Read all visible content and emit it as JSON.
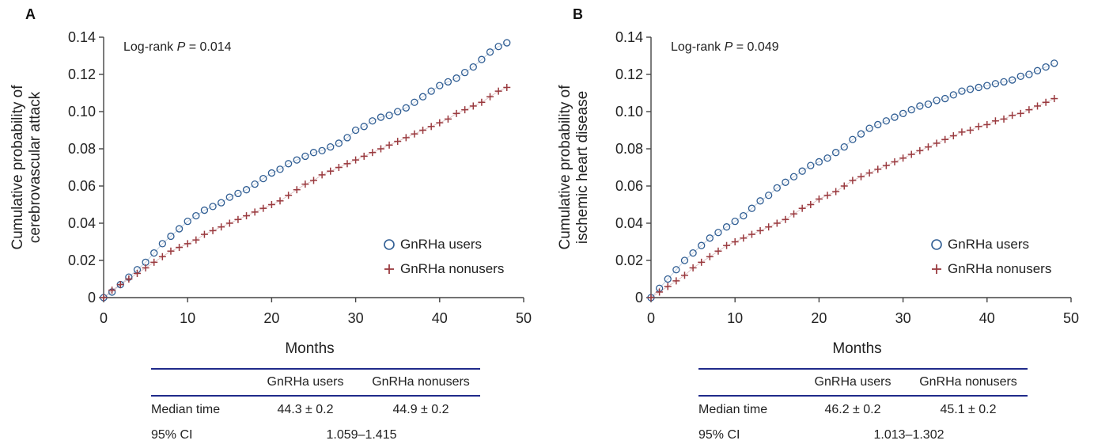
{
  "panels": [
    {
      "panel_label": "A",
      "annotation": {
        "prefix": "Log-rank ",
        "p": "P",
        "suffix": " = 0.014"
      },
      "table": {
        "col1": "GnRHa users",
        "col2": "GnRHa nonusers",
        "rows": [
          {
            "label": "Median time",
            "v1": "44.3 ± 0.2",
            "v2": "44.9 ± 0.2"
          },
          {
            "label": "95% CI",
            "span": "1.059–1.415"
          }
        ]
      }
    },
    {
      "panel_label": "B",
      "annotation": {
        "prefix": "Log-rank ",
        "p": "P",
        "suffix": " = 0.049"
      },
      "table": {
        "col1": "GnRHa users",
        "col2": "GnRHa nonusers",
        "rows": [
          {
            "label": "Median time",
            "v1": "46.2 ± 0.2",
            "v2": "45.1 ± 0.2"
          },
          {
            "label": "95% CI",
            "span": "1.013–1.302"
          }
        ]
      }
    }
  ],
  "chart_data": [
    {
      "type": "line",
      "xlabel": "Months",
      "ylabel": [
        "Cumulative probability of",
        "cerebrovascular attack"
      ],
      "xlim": [
        0,
        50
      ],
      "ylim": [
        0,
        0.14
      ],
      "xticks": [
        "0",
        "10",
        "20",
        "30",
        "40",
        "50"
      ],
      "yticks": [
        "0",
        "0.02",
        "0.04",
        "0.06",
        "0.08",
        "0.10",
        "0.12",
        "0.14"
      ],
      "legend": "bottom-right",
      "series": [
        {
          "name": "GnRHa users",
          "marker": "circle",
          "color": "#2f5d93",
          "x": [
            0,
            1,
            2,
            3,
            4,
            5,
            6,
            7,
            8,
            9,
            10,
            11,
            12,
            13,
            14,
            15,
            16,
            17,
            18,
            19,
            20,
            21,
            22,
            23,
            24,
            25,
            26,
            27,
            28,
            29,
            30,
            31,
            32,
            33,
            34,
            35,
            36,
            37,
            38,
            39,
            40,
            41,
            42,
            43,
            44,
            45,
            46,
            47,
            48
          ],
          "y": [
            0,
            0.003,
            0.007,
            0.011,
            0.015,
            0.019,
            0.024,
            0.029,
            0.033,
            0.037,
            0.041,
            0.044,
            0.047,
            0.049,
            0.051,
            0.054,
            0.056,
            0.058,
            0.061,
            0.064,
            0.067,
            0.069,
            0.072,
            0.074,
            0.076,
            0.078,
            0.079,
            0.081,
            0.083,
            0.086,
            0.09,
            0.092,
            0.095,
            0.097,
            0.098,
            0.1,
            0.102,
            0.105,
            0.108,
            0.111,
            0.114,
            0.116,
            0.118,
            0.121,
            0.124,
            0.128,
            0.132,
            0.135,
            0.137
          ]
        },
        {
          "name": "GnRHa nonusers",
          "marker": "plus",
          "color": "#9a3a3f",
          "x": [
            0,
            1,
            2,
            3,
            4,
            5,
            6,
            7,
            8,
            9,
            10,
            11,
            12,
            13,
            14,
            15,
            16,
            17,
            18,
            19,
            20,
            21,
            22,
            23,
            24,
            25,
            26,
            27,
            28,
            29,
            30,
            31,
            32,
            33,
            34,
            35,
            36,
            37,
            38,
            39,
            40,
            41,
            42,
            43,
            44,
            45,
            46,
            47,
            48
          ],
          "y": [
            0,
            0.004,
            0.007,
            0.01,
            0.013,
            0.016,
            0.019,
            0.022,
            0.025,
            0.027,
            0.029,
            0.031,
            0.034,
            0.036,
            0.038,
            0.04,
            0.042,
            0.044,
            0.046,
            0.048,
            0.05,
            0.052,
            0.055,
            0.058,
            0.061,
            0.063,
            0.066,
            0.068,
            0.07,
            0.072,
            0.074,
            0.076,
            0.078,
            0.08,
            0.082,
            0.084,
            0.086,
            0.088,
            0.09,
            0.092,
            0.094,
            0.096,
            0.099,
            0.101,
            0.103,
            0.105,
            0.108,
            0.111,
            0.113
          ]
        }
      ]
    },
    {
      "type": "line",
      "xlabel": "Months",
      "ylabel": [
        "Cumulative probability of",
        "ischemic heart disease"
      ],
      "xlim": [
        0,
        50
      ],
      "ylim": [
        0,
        0.14
      ],
      "xticks": [
        "0",
        "10",
        "20",
        "30",
        "40",
        "50"
      ],
      "yticks": [
        "0",
        "0.02",
        "0.04",
        "0.06",
        "0.08",
        "0.10",
        "0.12",
        "0.14"
      ],
      "legend": "bottom-right",
      "series": [
        {
          "name": "GnRHa users",
          "marker": "circle",
          "color": "#2f5d93",
          "x": [
            0,
            1,
            2,
            3,
            4,
            5,
            6,
            7,
            8,
            9,
            10,
            11,
            12,
            13,
            14,
            15,
            16,
            17,
            18,
            19,
            20,
            21,
            22,
            23,
            24,
            25,
            26,
            27,
            28,
            29,
            30,
            31,
            32,
            33,
            34,
            35,
            36,
            37,
            38,
            39,
            40,
            41,
            42,
            43,
            44,
            45,
            46,
            47,
            48
          ],
          "y": [
            0,
            0.005,
            0.01,
            0.015,
            0.02,
            0.024,
            0.028,
            0.032,
            0.035,
            0.038,
            0.041,
            0.044,
            0.048,
            0.052,
            0.055,
            0.059,
            0.062,
            0.065,
            0.068,
            0.071,
            0.073,
            0.075,
            0.078,
            0.081,
            0.085,
            0.088,
            0.091,
            0.093,
            0.095,
            0.097,
            0.099,
            0.101,
            0.103,
            0.104,
            0.106,
            0.107,
            0.109,
            0.111,
            0.112,
            0.113,
            0.114,
            0.115,
            0.116,
            0.117,
            0.119,
            0.12,
            0.122,
            0.124,
            0.126
          ]
        },
        {
          "name": "GnRHa nonusers",
          "marker": "plus",
          "color": "#9a3a3f",
          "x": [
            0,
            1,
            2,
            3,
            4,
            5,
            6,
            7,
            8,
            9,
            10,
            11,
            12,
            13,
            14,
            15,
            16,
            17,
            18,
            19,
            20,
            21,
            22,
            23,
            24,
            25,
            26,
            27,
            28,
            29,
            30,
            31,
            32,
            33,
            34,
            35,
            36,
            37,
            38,
            39,
            40,
            41,
            42,
            43,
            44,
            45,
            46,
            47,
            48
          ],
          "y": [
            0,
            0.003,
            0.006,
            0.009,
            0.012,
            0.016,
            0.019,
            0.022,
            0.025,
            0.028,
            0.03,
            0.032,
            0.034,
            0.036,
            0.038,
            0.04,
            0.042,
            0.045,
            0.048,
            0.05,
            0.053,
            0.055,
            0.057,
            0.06,
            0.063,
            0.065,
            0.067,
            0.069,
            0.071,
            0.073,
            0.075,
            0.077,
            0.079,
            0.081,
            0.083,
            0.085,
            0.087,
            0.089,
            0.09,
            0.092,
            0.093,
            0.095,
            0.096,
            0.098,
            0.099,
            0.101,
            0.103,
            0.105,
            0.107
          ]
        }
      ]
    }
  ]
}
